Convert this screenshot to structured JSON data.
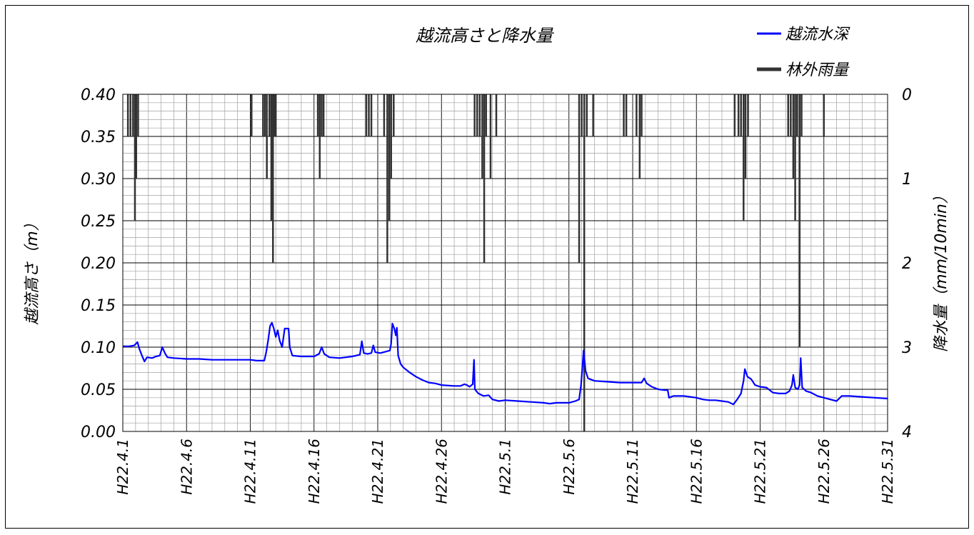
{
  "chart_data": {
    "type": "bar+line",
    "title": "越流高さと降水量",
    "ylabel_left": "越流高さ（m）",
    "ylabel_right": "降水量（mm/10min）",
    "xlabel": "",
    "ylim_left": [
      0,
      0.4
    ],
    "ylim_right": [
      4,
      0
    ],
    "right_axis_inverted": true,
    "x_start_date": "H22.4.1",
    "x_end_date": "H22.5.31",
    "x_range_days": [
      0,
      60
    ],
    "grid": true,
    "legend_position": "top-right",
    "left_ticks": [
      "0.00",
      "0.05",
      "0.10",
      "0.15",
      "0.20",
      "0.25",
      "0.30",
      "0.35",
      "0.40"
    ],
    "right_ticks": [
      "4",
      "3",
      "2",
      "1",
      "0"
    ],
    "x_tick_labels": [
      "H22.4.1",
      "H22.4.6",
      "H22.4.11",
      "H22.4.16",
      "H22.4.21",
      "H22.4.26",
      "H22.5.1",
      "H22.5.6",
      "H22.5.11",
      "H22.5.16",
      "H22.5.21",
      "H22.5.26",
      "H22.5.31"
    ],
    "series": [
      {
        "name": "越流水深",
        "kind": "line",
        "axis": "left",
        "color": "#0000ff",
        "points": [
          [
            0.0,
            0.101
          ],
          [
            0.5,
            0.101
          ],
          [
            0.9,
            0.102
          ],
          [
            1.15,
            0.106
          ],
          [
            1.3,
            0.098
          ],
          [
            1.5,
            0.09
          ],
          [
            1.7,
            0.083
          ],
          [
            1.9,
            0.088
          ],
          [
            2.3,
            0.087
          ],
          [
            2.6,
            0.089
          ],
          [
            2.9,
            0.09
          ],
          [
            3.1,
            0.1
          ],
          [
            3.3,
            0.093
          ],
          [
            3.5,
            0.088
          ],
          [
            4.0,
            0.087
          ],
          [
            5.0,
            0.086
          ],
          [
            6.0,
            0.086
          ],
          [
            7.0,
            0.085
          ],
          [
            8.0,
            0.085
          ],
          [
            9.0,
            0.085
          ],
          [
            10.0,
            0.085
          ],
          [
            10.5,
            0.084
          ],
          [
            11.1,
            0.084
          ],
          [
            11.25,
            0.094
          ],
          [
            11.4,
            0.108
          ],
          [
            11.55,
            0.125
          ],
          [
            11.7,
            0.129
          ],
          [
            11.85,
            0.122
          ],
          [
            12.0,
            0.112
          ],
          [
            12.15,
            0.12
          ],
          [
            12.3,
            0.108
          ],
          [
            12.5,
            0.1
          ],
          [
            12.7,
            0.122
          ],
          [
            13.0,
            0.122
          ],
          [
            13.1,
            0.1
          ],
          [
            13.3,
            0.09
          ],
          [
            14.0,
            0.089
          ],
          [
            15.0,
            0.089
          ],
          [
            15.4,
            0.092
          ],
          [
            15.6,
            0.1
          ],
          [
            15.8,
            0.092
          ],
          [
            16.2,
            0.088
          ],
          [
            17.0,
            0.087
          ],
          [
            18.0,
            0.089
          ],
          [
            18.6,
            0.091
          ],
          [
            18.75,
            0.107
          ],
          [
            18.9,
            0.093
          ],
          [
            19.2,
            0.092
          ],
          [
            19.5,
            0.093
          ],
          [
            19.65,
            0.102
          ],
          [
            19.8,
            0.094
          ],
          [
            20.2,
            0.093
          ],
          [
            20.7,
            0.095
          ],
          [
            20.95,
            0.096
          ],
          [
            21.05,
            0.104
          ],
          [
            21.15,
            0.128
          ],
          [
            21.3,
            0.122
          ],
          [
            21.42,
            0.114
          ],
          [
            21.5,
            0.123
          ],
          [
            21.6,
            0.09
          ],
          [
            21.8,
            0.08
          ],
          [
            22.0,
            0.076
          ],
          [
            22.5,
            0.07
          ],
          [
            23.0,
            0.065
          ],
          [
            23.5,
            0.061
          ],
          [
            24.0,
            0.058
          ],
          [
            24.5,
            0.057
          ],
          [
            25.0,
            0.055
          ],
          [
            26.0,
            0.054
          ],
          [
            26.5,
            0.054
          ],
          [
            26.8,
            0.056
          ],
          [
            27.0,
            0.055
          ],
          [
            27.2,
            0.053
          ],
          [
            27.45,
            0.056
          ],
          [
            27.55,
            0.085
          ],
          [
            27.62,
            0.05
          ],
          [
            27.9,
            0.045
          ],
          [
            28.3,
            0.042
          ],
          [
            28.7,
            0.043
          ],
          [
            29.0,
            0.038
          ],
          [
            29.5,
            0.036
          ],
          [
            30.0,
            0.037
          ],
          [
            31.0,
            0.036
          ],
          [
            32.0,
            0.035
          ],
          [
            33.0,
            0.034
          ],
          [
            33.5,
            0.033
          ],
          [
            34.0,
            0.034
          ],
          [
            35.0,
            0.034
          ],
          [
            35.5,
            0.036
          ],
          [
            35.8,
            0.038
          ],
          [
            35.95,
            0.055
          ],
          [
            36.05,
            0.075
          ],
          [
            36.15,
            0.096
          ],
          [
            36.3,
            0.072
          ],
          [
            36.5,
            0.063
          ],
          [
            37.0,
            0.06
          ],
          [
            38.0,
            0.059
          ],
          [
            39.0,
            0.058
          ],
          [
            40.0,
            0.058
          ],
          [
            40.7,
            0.058
          ],
          [
            40.9,
            0.063
          ],
          [
            41.1,
            0.057
          ],
          [
            41.5,
            0.053
          ],
          [
            42.0,
            0.05
          ],
          [
            42.5,
            0.049
          ],
          [
            42.75,
            0.049
          ],
          [
            42.85,
            0.04
          ],
          [
            43.2,
            0.042
          ],
          [
            44.0,
            0.042
          ],
          [
            45.0,
            0.04
          ],
          [
            45.5,
            0.038
          ],
          [
            46.0,
            0.037
          ],
          [
            46.5,
            0.037
          ],
          [
            47.0,
            0.036
          ],
          [
            47.5,
            0.035
          ],
          [
            47.9,
            0.032
          ],
          [
            48.2,
            0.038
          ],
          [
            48.5,
            0.045
          ],
          [
            48.7,
            0.06
          ],
          [
            48.8,
            0.074
          ],
          [
            49.0,
            0.065
          ],
          [
            49.3,
            0.062
          ],
          [
            49.6,
            0.055
          ],
          [
            50.0,
            0.053
          ],
          [
            50.5,
            0.052
          ],
          [
            51.0,
            0.046
          ],
          [
            51.5,
            0.045
          ],
          [
            52.0,
            0.045
          ],
          [
            52.3,
            0.048
          ],
          [
            52.5,
            0.055
          ],
          [
            52.6,
            0.067
          ],
          [
            52.75,
            0.052
          ],
          [
            52.95,
            0.05
          ],
          [
            53.1,
            0.055
          ],
          [
            53.18,
            0.087
          ],
          [
            53.3,
            0.052
          ],
          [
            53.6,
            0.048
          ],
          [
            54.0,
            0.046
          ],
          [
            54.5,
            0.042
          ],
          [
            55.0,
            0.04
          ],
          [
            55.5,
            0.038
          ],
          [
            56.0,
            0.036
          ],
          [
            56.4,
            0.042
          ],
          [
            57.0,
            0.042
          ],
          [
            58.0,
            0.041
          ],
          [
            59.0,
            0.04
          ],
          [
            60.0,
            0.039
          ]
        ]
      },
      {
        "name": "林外雨量",
        "kind": "bar",
        "axis": "right",
        "color": "#333333",
        "bars": [
          [
            0.4,
            0.5
          ],
          [
            0.6,
            0.5
          ],
          [
            0.8,
            0.5
          ],
          [
            0.95,
            1.5
          ],
          [
            1.05,
            1.0
          ],
          [
            1.2,
            0.5
          ],
          [
            10.1,
            0.5
          ],
          [
            11.0,
            0.5
          ],
          [
            11.15,
            0.5
          ],
          [
            11.3,
            1.0
          ],
          [
            11.5,
            0.5
          ],
          [
            11.65,
            1.5
          ],
          [
            11.78,
            2.0
          ],
          [
            11.88,
            0.5
          ],
          [
            12.0,
            0.5
          ],
          [
            15.3,
            0.5
          ],
          [
            15.45,
            1.0
          ],
          [
            15.6,
            0.5
          ],
          [
            15.75,
            0.5
          ],
          [
            19.1,
            0.5
          ],
          [
            19.3,
            0.5
          ],
          [
            19.5,
            0.5
          ],
          [
            20.5,
            0.5
          ],
          [
            20.75,
            2.0
          ],
          [
            20.9,
            1.5
          ],
          [
            21.05,
            1.0
          ],
          [
            21.25,
            0.5
          ],
          [
            27.6,
            0.5
          ],
          [
            27.8,
            0.5
          ],
          [
            28.0,
            0.5
          ],
          [
            28.2,
            1.0
          ],
          [
            28.35,
            2.0
          ],
          [
            28.5,
            0.5
          ],
          [
            28.85,
            1.0
          ],
          [
            29.3,
            0.5
          ],
          [
            35.8,
            2.0
          ],
          [
            36.0,
            0.5
          ],
          [
            36.2,
            4.0
          ],
          [
            36.4,
            0.5
          ],
          [
            36.9,
            0.5
          ],
          [
            39.3,
            0.5
          ],
          [
            39.5,
            0.5
          ],
          [
            40.3,
            0.5
          ],
          [
            40.55,
            1.0
          ],
          [
            40.7,
            0.5
          ],
          [
            48.0,
            0.5
          ],
          [
            48.3,
            0.5
          ],
          [
            48.5,
            0.5
          ],
          [
            48.7,
            1.5
          ],
          [
            48.85,
            1.0
          ],
          [
            49.05,
            0.5
          ],
          [
            52.2,
            0.5
          ],
          [
            52.4,
            0.5
          ],
          [
            52.6,
            1.0
          ],
          [
            52.75,
            1.5
          ],
          [
            52.9,
            0.5
          ],
          [
            53.1,
            3.0
          ],
          [
            53.25,
            0.5
          ],
          [
            55.0,
            0.5
          ]
        ]
      }
    ],
    "legend": [
      {
        "label": "越流水深",
        "color": "#0000ff"
      },
      {
        "label": "林外雨量",
        "color": "#333333"
      }
    ]
  }
}
